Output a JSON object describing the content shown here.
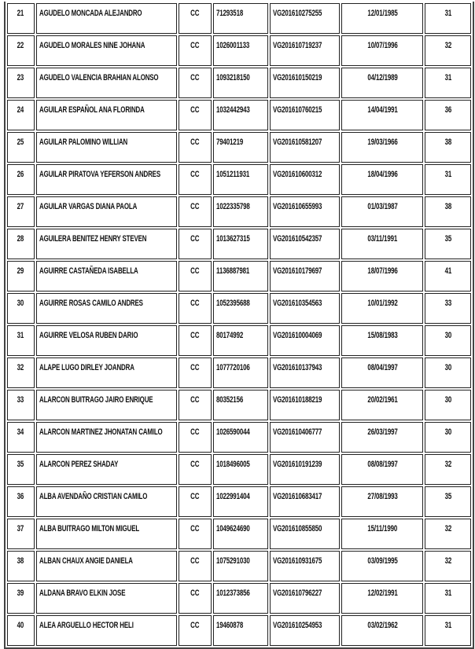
{
  "rows": [
    {
      "num": "21",
      "name": "AGUDELO MONCADA ALEJANDRO",
      "doc_type": "CC",
      "id": "71293518",
      "code": "VG201610275255",
      "date": "12/01/1985",
      "value": "31"
    },
    {
      "num": "22",
      "name": "AGUDELO MORALES NINE JOHANA",
      "doc_type": "CC",
      "id": "1026001133",
      "code": "VG201610719237",
      "date": "10/07/1996",
      "value": "32"
    },
    {
      "num": "23",
      "name": "AGUDELO VALENCIA BRAHIAN ALONSO",
      "doc_type": "CC",
      "id": "1093218150",
      "code": "VG201610150219",
      "date": "04/12/1989",
      "value": "31"
    },
    {
      "num": "24",
      "name": "AGUILAR ESPAÑOL ANA FLORINDA",
      "doc_type": "CC",
      "id": "1032442943",
      "code": "VG201610760215",
      "date": "14/04/1991",
      "value": "36"
    },
    {
      "num": "25",
      "name": "AGUILAR PALOMINO WILLIAN",
      "doc_type": "CC",
      "id": "79401219",
      "code": "VG201610581207",
      "date": "19/03/1966",
      "value": "38"
    },
    {
      "num": "26",
      "name": "AGUILAR PIRATOVA YEFERSON ANDRES",
      "doc_type": "CC",
      "id": "1051211931",
      "code": "VG201610600312",
      "date": "18/04/1996",
      "value": "31"
    },
    {
      "num": "27",
      "name": "AGUILAR VARGAS DIANA PAOLA",
      "doc_type": "CC",
      "id": "1022335798",
      "code": "VG201610655993",
      "date": "01/03/1987",
      "value": "38"
    },
    {
      "num": "28",
      "name": "AGUILERA BENITEZ HENRY STEVEN",
      "doc_type": "CC",
      "id": "1013627315",
      "code": "VG201610542357",
      "date": "03/11/1991",
      "value": "35"
    },
    {
      "num": "29",
      "name": "AGUIRRE CASTAÑEDA ISABELLA",
      "doc_type": "CC",
      "id": "1136887981",
      "code": "VG201610179697",
      "date": "18/07/1996",
      "value": "41"
    },
    {
      "num": "30",
      "name": "AGUIRRE ROSAS CAMILO ANDRES",
      "doc_type": "CC",
      "id": "1052395688",
      "code": "VG201610354563",
      "date": "10/01/1992",
      "value": "33"
    },
    {
      "num": "31",
      "name": "AGUIRRE VELOSA RUBEN DARIO",
      "doc_type": "CC",
      "id": "80174992",
      "code": "VG201610004069",
      "date": "15/08/1983",
      "value": "30"
    },
    {
      "num": "32",
      "name": "ALAPE LUGO DIRLEY JOANDRA",
      "doc_type": "CC",
      "id": "1077720106",
      "code": "VG201610137943",
      "date": "08/04/1997",
      "value": "30"
    },
    {
      "num": "33",
      "name": "ALARCON BUITRAGO JAIRO ENRIQUE",
      "doc_type": "CC",
      "id": "80352156",
      "code": "VG201610188219",
      "date": "20/02/1961",
      "value": "30"
    },
    {
      "num": "34",
      "name": "ALARCON MARTINEZ JHONATAN CAMILO",
      "doc_type": "CC",
      "id": "1026590044",
      "code": "VG201610406777",
      "date": "26/03/1997",
      "value": "30"
    },
    {
      "num": "35",
      "name": "ALARCON PEREZ SHADAY",
      "doc_type": "CC",
      "id": "1018496005",
      "code": "VG201610191239",
      "date": "08/08/1997",
      "value": "32"
    },
    {
      "num": "36",
      "name": "ALBA AVENDAÑO CRISTIAN CAMILO",
      "doc_type": "CC",
      "id": "1022991404",
      "code": "VG201610683417",
      "date": "27/08/1993",
      "value": "35"
    },
    {
      "num": "37",
      "name": "ALBA BUITRAGO MILTON MIGUEL",
      "doc_type": "CC",
      "id": "1049624690",
      "code": "VG201610855850",
      "date": "15/11/1990",
      "value": "32"
    },
    {
      "num": "38",
      "name": "ALBAN CHAUX ANGIE DANIELA",
      "doc_type": "CC",
      "id": "1075291030",
      "code": "VG201610931675",
      "date": "03/09/1995",
      "value": "32"
    },
    {
      "num": "39",
      "name": "ALDANA BRAVO ELKIN JOSE",
      "doc_type": "CC",
      "id": "1012373856",
      "code": "VG201610796227",
      "date": "12/02/1991",
      "value": "31"
    },
    {
      "num": "40",
      "name": "ALEA ARGUELLO HECTOR HELI",
      "doc_type": "CC",
      "id": "19460878",
      "code": "VG201610254953",
      "date": "03/02/1962",
      "value": "31"
    }
  ]
}
